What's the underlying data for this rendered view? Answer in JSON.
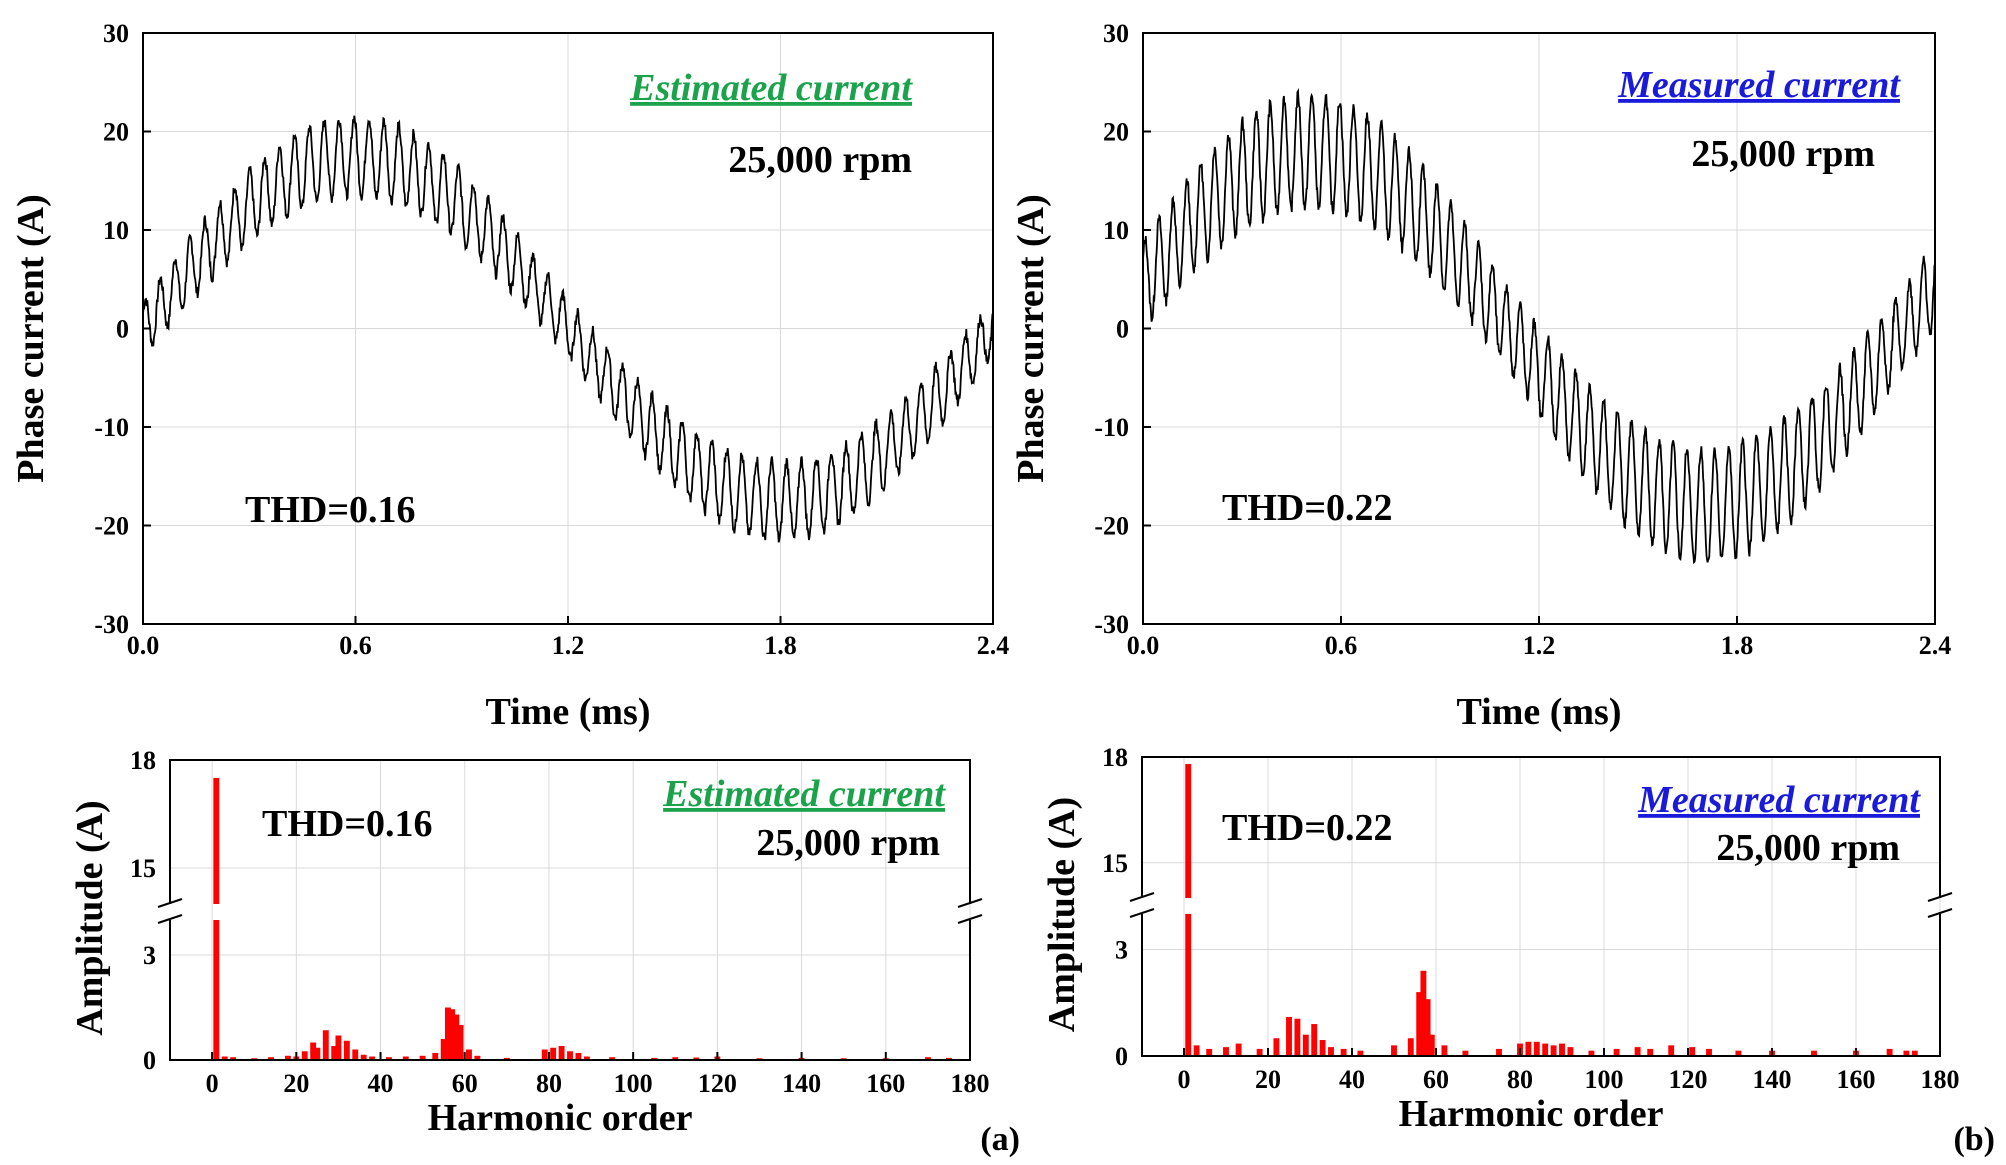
{
  "colors": {
    "estimated": "#1aa34a",
    "measured": "#1a1adb",
    "bars": "#ff0000",
    "trace": "#000000"
  },
  "chart_data": [
    {
      "id": "a_time",
      "type": "line",
      "xlabel": "Time (ms)",
      "ylabel": "Phase current (A)",
      "xlim": [
        0.0,
        2.4
      ],
      "ylim": [
        -30,
        30
      ],
      "xticks": [
        "0.0",
        "0.6",
        "1.2",
        "1.8",
        "2.4"
      ],
      "yticks": [
        "30",
        "20",
        "10",
        "0",
        "-10",
        "-20",
        "-30"
      ],
      "grid": true,
      "legend_text": "Estimated current",
      "speed": "25,000 rpm",
      "thd": "THD=0.16",
      "series": [
        {
          "fundamental_amplitude": 17.5,
          "period_ms": 2.4,
          "phase_deg": 0,
          "ripple_amplitude": 3.6,
          "ripple_harmonic": 57,
          "envelope_min": -22.5,
          "envelope_max": 22
        }
      ]
    },
    {
      "id": "b_time",
      "type": "line",
      "xlabel": "Time (ms)",
      "ylabel": "Phase current (A)",
      "xlim": [
        0.0,
        2.4
      ],
      "ylim": [
        -30,
        30
      ],
      "xticks": [
        "0.0",
        "0.6",
        "1.2",
        "1.8",
        "2.4"
      ],
      "yticks": [
        "30",
        "20",
        "10",
        "0",
        "-10",
        "-20",
        "-30"
      ],
      "grid": true,
      "legend_text": "Measured current",
      "speed": "25,000 rpm",
      "thd": "THD=0.22",
      "series": [
        {
          "fundamental_amplitude": 18,
          "period_ms": 2.4,
          "phase_deg": 14,
          "ripple_amplitude": 5.2,
          "ripple_harmonic": 57,
          "envelope_min": -25,
          "envelope_max": 24
        }
      ]
    },
    {
      "id": "a_spectrum",
      "type": "bar",
      "xlabel": "Harmonic order",
      "ylabel": "Amplitude (A)",
      "xlim": [
        -10,
        180
      ],
      "xticks": [
        "0",
        "20",
        "40",
        "60",
        "80",
        "100",
        "120",
        "140",
        "160",
        "180"
      ],
      "yticks": [
        "18",
        "15",
        "3",
        "0"
      ],
      "broken_axis": true,
      "grid": true,
      "legend_text": "Estimated current",
      "speed": "25,000 rpm",
      "thd": "THD=0.16",
      "panel_label": "(a)",
      "harmonics": [
        1,
        3,
        5,
        10,
        14,
        18,
        20,
        22,
        24,
        25,
        27,
        29,
        30,
        32,
        34,
        36,
        38,
        42,
        46,
        50,
        53,
        55,
        56,
        57,
        58,
        59,
        61,
        63,
        70,
        79,
        81,
        83,
        85,
        87,
        89,
        95,
        105,
        110,
        115,
        120,
        130,
        140,
        150,
        160,
        170,
        175
      ],
      "values": [
        17.5,
        0.1,
        0.08,
        0.05,
        0.08,
        0.12,
        0.1,
        0.25,
        0.5,
        0.35,
        0.85,
        0.4,
        0.7,
        0.55,
        0.3,
        0.15,
        0.1,
        0.08,
        0.1,
        0.12,
        0.2,
        0.6,
        1.5,
        1.45,
        1.3,
        1.0,
        0.3,
        0.12,
        0.06,
        0.3,
        0.35,
        0.4,
        0.25,
        0.2,
        0.1,
        0.08,
        0.06,
        0.08,
        0.07,
        0.1,
        0.05,
        0.06,
        0.05,
        0.05,
        0.08,
        0.06
      ]
    },
    {
      "id": "b_spectrum",
      "type": "bar",
      "xlabel": "Harmonic order",
      "ylabel": "Amplitude (A)",
      "xlim": [
        -10,
        180
      ],
      "xticks": [
        "0",
        "20",
        "40",
        "60",
        "80",
        "100",
        "120",
        "140",
        "160",
        "180"
      ],
      "yticks": [
        "18",
        "15",
        "3",
        "0"
      ],
      "broken_axis": true,
      "grid": true,
      "legend_text": "Measured current",
      "speed": "25,000 rpm",
      "thd": "THD=0.22",
      "panel_label": "(b)",
      "harmonics": [
        1,
        3,
        6,
        10,
        13,
        18,
        22,
        25,
        27,
        29,
        31,
        33,
        35,
        38,
        42,
        50,
        54,
        56,
        57,
        58,
        59,
        62,
        67,
        75,
        80,
        82,
        84,
        86,
        88,
        90,
        92,
        97,
        103,
        108,
        111,
        116,
        121,
        125,
        132,
        140,
        150,
        160,
        168,
        172,
        174
      ],
      "values": [
        17.8,
        0.3,
        0.2,
        0.25,
        0.35,
        0.2,
        0.5,
        1.1,
        1.05,
        0.6,
        0.9,
        0.45,
        0.25,
        0.2,
        0.15,
        0.3,
        0.5,
        1.8,
        2.4,
        1.6,
        0.6,
        0.3,
        0.15,
        0.2,
        0.35,
        0.4,
        0.4,
        0.35,
        0.3,
        0.35,
        0.25,
        0.15,
        0.2,
        0.25,
        0.2,
        0.3,
        0.25,
        0.2,
        0.15,
        0.15,
        0.15,
        0.15,
        0.2,
        0.15,
        0.15
      ]
    }
  ]
}
